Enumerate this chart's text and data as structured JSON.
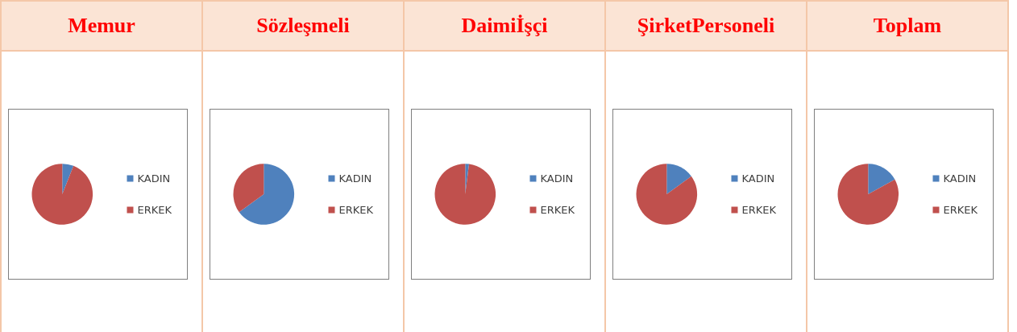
{
  "chart_data": [
    {
      "type": "pie",
      "title": "Memur",
      "categories": [
        "KADIN",
        "ERKEK"
      ],
      "values": [
        6,
        94
      ],
      "colors": [
        "#4f81bd",
        "#c0504d"
      ],
      "legend": "right"
    },
    {
      "type": "pie",
      "title": "Sözleşmeli",
      "categories": [
        "KADIN",
        "ERKEK"
      ],
      "values": [
        65,
        35
      ],
      "colors": [
        "#4f81bd",
        "#c0504d"
      ],
      "legend": "right"
    },
    {
      "type": "pie",
      "title": "Daimiİşçi",
      "categories": [
        "KADIN",
        "ERKEK"
      ],
      "values": [
        2,
        98
      ],
      "colors": [
        "#4f81bd",
        "#c0504d"
      ],
      "legend": "right"
    },
    {
      "type": "pie",
      "title": "ŞirketPersoneli",
      "categories": [
        "KADIN",
        "ERKEK"
      ],
      "values": [
        15,
        85
      ],
      "colors": [
        "#4f81bd",
        "#c0504d"
      ],
      "legend": "right"
    },
    {
      "type": "pie",
      "title": "Toplam",
      "categories": [
        "KADIN",
        "ERKEK"
      ],
      "values": [
        17,
        83
      ],
      "colors": [
        "#4f81bd",
        "#c0504d"
      ],
      "legend": "right"
    }
  ]
}
